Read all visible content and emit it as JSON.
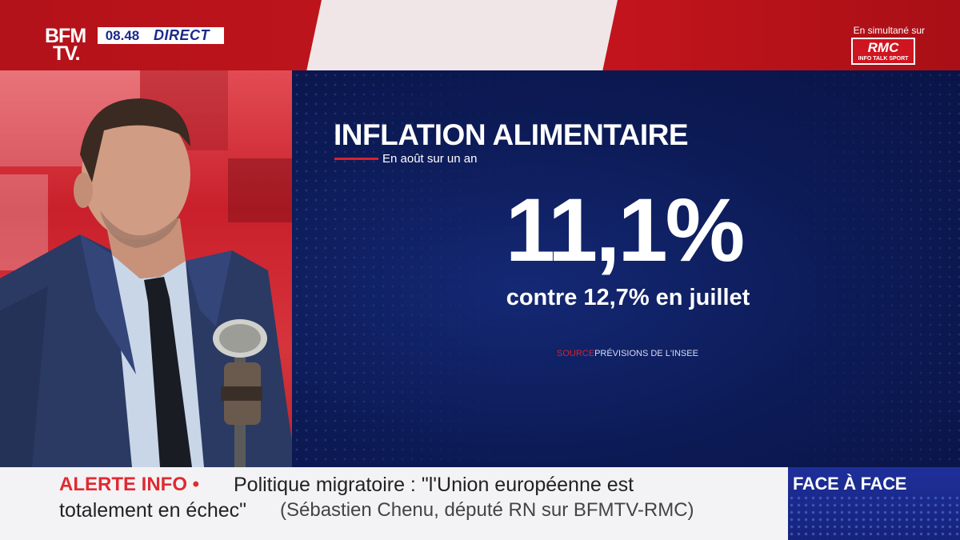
{
  "header": {
    "channel_logo": "BFM TV.",
    "time": "08.48",
    "live_label": "DIRECT",
    "simulcast_label": "En simultané sur",
    "partner_name": "RMC",
    "partner_tagline": "INFO TALK SPORT"
  },
  "infographic": {
    "title": "INFLATION ALIMENTAIRE",
    "subtitle": "En août sur un an",
    "value": "11,1%",
    "comparison": "contre 12,7% en juillet",
    "source_label": "SOURCE",
    "source_text": "PRÉVISIONS DE L'INSEE"
  },
  "ticker": {
    "alert_label": "ALERTE INFO •",
    "headline_line1": "Politique migratoire : \"l'Union européenne est",
    "headline_line2": "totalement en échec\"",
    "attribution": "(Sébastien Chenu, député RN sur BFMTV-RMC)",
    "program_name": "FACE À FACE"
  },
  "colors": {
    "brand_red": "#c5151d",
    "infographic_navy": "#0c1a55",
    "alert_red": "#e02a32",
    "program_blue": "#1e2f9a"
  }
}
